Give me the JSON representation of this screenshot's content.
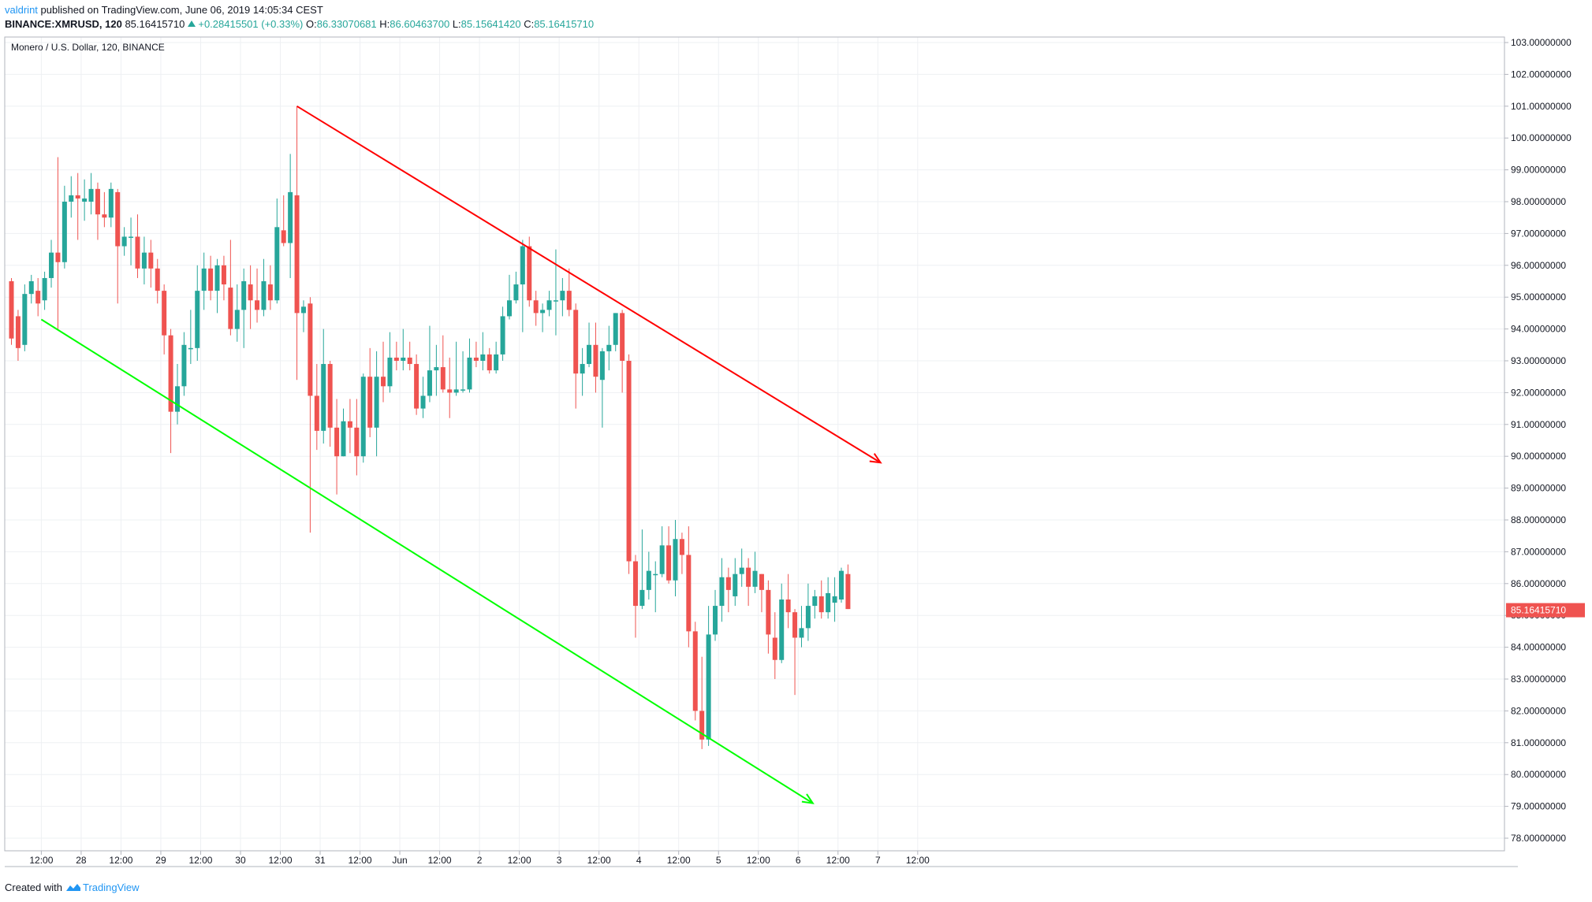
{
  "header": {
    "user": "valdrint",
    "published": " published on TradingView.com, June 06, 2019 14:05:34 CEST",
    "symbol": "BINANCE:XMRUSD, 120",
    "last": "85.16415710",
    "change": "+0.28415501 (+0.33%)",
    "o_label": "O:",
    "o_value": "86.33070681",
    "h_label": "H:",
    "h_value": "86.60463700",
    "l_label": "L:",
    "l_value": "85.15641420",
    "c_label": "C:",
    "c_value": "85.16415710"
  },
  "footer": {
    "created_with": "Created with",
    "brand": "TradingView"
  },
  "colors": {
    "up": "#26a69a",
    "down": "#ef5350",
    "upper_trend": "#ff0000",
    "lower_trend": "#00ff00",
    "grid": "#eef0f3"
  },
  "chart_data": {
    "type": "candlestick",
    "title": "Monero / U.S. Dollar, 120, BINANCE",
    "ylim": [
      77.6,
      103.3
    ],
    "y_ticks": [
      "103.00000000",
      "102.00000000",
      "101.00000000",
      "100.00000000",
      "99.00000000",
      "98.00000000",
      "97.00000000",
      "96.00000000",
      "95.00000000",
      "94.00000000",
      "93.00000000",
      "92.00000000",
      "91.00000000",
      "90.00000000",
      "89.00000000",
      "88.00000000",
      "87.00000000",
      "86.00000000",
      "85.00000000",
      "84.00000000",
      "83.00000000",
      "82.00000000",
      "81.00000000",
      "80.00000000",
      "79.00000000",
      "78.00000000"
    ],
    "x_ticks": [
      {
        "label": "12:00",
        "slot": 4.5
      },
      {
        "label": "28",
        "slot": 10.5
      },
      {
        "label": "12:00",
        "slot": 16.5
      },
      {
        "label": "29",
        "slot": 22.5
      },
      {
        "label": "12:00",
        "slot": 28.5
      },
      {
        "label": "30",
        "slot": 34.5
      },
      {
        "label": "12:00",
        "slot": 40.5
      },
      {
        "label": "31",
        "slot": 46.5
      },
      {
        "label": "12:00",
        "slot": 52.5
      },
      {
        "label": "Jun",
        "slot": 58.5
      },
      {
        "label": "12:00",
        "slot": 64.5
      },
      {
        "label": "2",
        "slot": 70.5
      },
      {
        "label": "12:00",
        "slot": 76.5
      },
      {
        "label": "3",
        "slot": 82.5
      },
      {
        "label": "12:00",
        "slot": 88.5
      },
      {
        "label": "4",
        "slot": 94.5
      },
      {
        "label": "12:00",
        "slot": 100.5
      },
      {
        "label": "5",
        "slot": 106.5
      },
      {
        "label": "12:00",
        "slot": 112.5
      },
      {
        "label": "6",
        "slot": 118.5
      },
      {
        "label": "12:00",
        "slot": 124.5
      },
      {
        "label": "7",
        "slot": 130.5
      },
      {
        "label": "12:00",
        "slot": 136.5
      }
    ],
    "last_price": 85.1641571,
    "last_price_label": "85.16415710",
    "candles": [
      [
        0.0,
        95.5,
        93.7,
        95.6,
        93.5
      ],
      [
        1.0,
        94.4,
        93.4,
        94.6,
        93.0
      ],
      [
        2.0,
        93.5,
        95.1,
        95.4,
        93.3
      ],
      [
        3.0,
        95.1,
        95.5,
        95.7,
        94.8
      ],
      [
        4.0,
        95.2,
        94.8,
        95.6,
        94.4
      ],
      [
        5.0,
        94.9,
        95.6,
        95.8,
        94.6
      ],
      [
        6.0,
        95.6,
        96.4,
        96.8,
        95.3
      ],
      [
        7.0,
        96.4,
        96.1,
        99.4,
        94.0
      ],
      [
        8.0,
        96.1,
        98.0,
        98.5,
        95.9
      ],
      [
        9.0,
        98.0,
        98.2,
        98.8,
        97.5
      ],
      [
        10.0,
        98.2,
        98.1,
        98.9,
        96.8
      ],
      [
        11.0,
        98.0,
        98.1,
        98.7,
        97.4
      ],
      [
        12.0,
        98.0,
        98.4,
        98.9,
        97.6
      ],
      [
        13.0,
        98.4,
        97.6,
        98.6,
        96.8
      ],
      [
        14.0,
        97.6,
        97.5,
        98.3,
        97.2
      ],
      [
        15.0,
        97.5,
        98.4,
        98.6,
        97.2
      ],
      [
        16.0,
        98.3,
        96.6,
        98.4,
        94.8
      ],
      [
        17.0,
        96.6,
        96.9,
        97.2,
        96.3
      ],
      [
        18.0,
        96.9,
        96.9,
        97.5,
        96.0
      ],
      [
        19.0,
        96.9,
        95.9,
        97.6,
        95.6
      ],
      [
        20.0,
        95.9,
        96.4,
        96.9,
        95.4
      ],
      [
        21.0,
        96.4,
        95.9,
        96.8,
        95.3
      ],
      [
        22.0,
        95.9,
        95.2,
        96.2,
        94.8
      ],
      [
        23.0,
        95.2,
        93.8,
        95.4,
        93.2
      ],
      [
        24.0,
        93.8,
        91.4,
        94.0,
        90.1
      ],
      [
        25.0,
        91.4,
        92.2,
        92.9,
        91.0
      ],
      [
        26.0,
        92.2,
        93.5,
        93.9,
        91.9
      ],
      [
        27.0,
        93.4,
        93.4,
        94.6,
        92.9
      ],
      [
        28.0,
        93.4,
        95.2,
        96.0,
        93.0
      ],
      [
        29.0,
        95.2,
        95.9,
        96.4,
        94.6
      ],
      [
        30.0,
        95.9,
        95.2,
        96.3,
        94.9
      ],
      [
        31.0,
        95.2,
        96.0,
        96.2,
        94.5
      ],
      [
        32.0,
        96.0,
        95.4,
        96.3,
        94.9
      ],
      [
        33.0,
        95.3,
        94.0,
        96.8,
        93.8
      ],
      [
        34.0,
        94.0,
        94.6,
        95.4,
        93.6
      ],
      [
        35.0,
        94.6,
        95.5,
        95.9,
        93.4
      ],
      [
        36.0,
        95.4,
        94.9,
        96.0,
        94.0
      ],
      [
        37.0,
        94.9,
        94.6,
        95.9,
        94.2
      ],
      [
        38.0,
        94.6,
        95.5,
        96.2,
        94.4
      ],
      [
        39.0,
        95.4,
        94.9,
        96.0,
        94.6
      ],
      [
        40.0,
        94.9,
        97.2,
        98.1,
        94.8
      ],
      [
        41.0,
        97.1,
        96.7,
        98.2,
        96.6
      ],
      [
        42.0,
        96.7,
        98.3,
        99.5,
        95.6
      ],
      [
        43.0,
        98.2,
        94.5,
        101.0,
        92.4
      ],
      [
        44.0,
        94.5,
        94.7,
        94.9,
        93.9
      ],
      [
        45.0,
        94.8,
        91.9,
        95.0,
        87.6
      ],
      [
        46.0,
        91.9,
        90.8,
        92.9,
        90.2
      ],
      [
        47.0,
        90.8,
        92.9,
        94.0,
        90.4
      ],
      [
        48.0,
        92.9,
        90.9,
        93.0,
        90.3
      ],
      [
        49.0,
        90.9,
        90.0,
        91.8,
        88.8
      ],
      [
        50.0,
        90.0,
        91.1,
        91.5,
        90.0
      ],
      [
        51.0,
        91.1,
        90.9,
        91.8,
        90.1
      ],
      [
        52.0,
        90.9,
        90.0,
        91.8,
        89.4
      ],
      [
        53.0,
        90.0,
        92.5,
        92.6,
        89.8
      ],
      [
        54.0,
        92.5,
        90.9,
        93.4,
        90.6
      ],
      [
        55.0,
        90.9,
        92.5,
        93.3,
        90.0
      ],
      [
        56.0,
        92.5,
        92.2,
        93.6,
        91.7
      ],
      [
        57.0,
        92.2,
        93.1,
        93.9,
        92.0
      ],
      [
        58.0,
        93.1,
        93.0,
        93.6,
        92.7
      ],
      [
        59.0,
        93.0,
        93.1,
        94.0,
        92.7
      ],
      [
        60.0,
        93.1,
        92.9,
        93.6,
        92.7
      ],
      [
        61.0,
        92.9,
        91.5,
        93.2,
        91.3
      ],
      [
        62.0,
        91.5,
        91.9,
        92.5,
        91.2
      ],
      [
        63.0,
        91.9,
        92.7,
        94.1,
        91.7
      ],
      [
        64.0,
        92.7,
        92.8,
        93.5,
        91.9
      ],
      [
        65.0,
        92.8,
        92.1,
        93.8,
        92.0
      ],
      [
        66.0,
        92.1,
        92.0,
        93.1,
        91.2
      ],
      [
        67.0,
        92.0,
        92.1,
        93.6,
        91.9
      ],
      [
        68.0,
        92.1,
        92.1,
        93.3,
        92.0
      ],
      [
        69.0,
        92.1,
        93.1,
        93.7,
        92.0
      ],
      [
        70.0,
        93.1,
        93.0,
        93.6,
        92.8
      ],
      [
        71.0,
        93.0,
        93.2,
        93.9,
        92.7
      ],
      [
        72.0,
        93.2,
        92.7,
        93.4,
        92.6
      ],
      [
        73.0,
        92.7,
        93.2,
        93.6,
        92.6
      ],
      [
        74.0,
        93.2,
        94.4,
        94.7,
        93.0
      ],
      [
        75.0,
        94.4,
        94.9,
        95.7,
        94.3
      ],
      [
        76.0,
        94.9,
        95.4,
        95.8,
        94.8
      ],
      [
        77.0,
        95.4,
        96.6,
        96.8,
        93.9
      ],
      [
        78.0,
        96.6,
        94.9,
        96.9,
        94.7
      ],
      [
        79.0,
        94.9,
        94.5,
        95.2,
        94.1
      ],
      [
        80.0,
        94.5,
        94.6,
        94.8,
        93.9
      ],
      [
        81.0,
        94.6,
        94.9,
        95.2,
        94.4
      ],
      [
        82.0,
        94.9,
        94.9,
        96.5,
        93.8
      ],
      [
        83.0,
        94.9,
        95.2,
        95.6,
        94.4
      ],
      [
        84.0,
        95.2,
        94.6,
        95.9,
        94.4
      ],
      [
        85.0,
        94.6,
        92.6,
        94.8,
        91.5
      ],
      [
        86.0,
        92.6,
        92.9,
        93.4,
        91.9
      ],
      [
        87.0,
        92.9,
        93.5,
        94.2,
        92.8
      ],
      [
        88.0,
        93.5,
        92.5,
        94.2,
        92.0
      ],
      [
        89.0,
        92.4,
        93.3,
        93.4,
        90.9
      ],
      [
        90.0,
        93.3,
        93.5,
        94.1,
        92.7
      ],
      [
        91.0,
        93.5,
        94.5,
        94.5,
        93.3
      ],
      [
        92.0,
        94.5,
        93.0,
        94.6,
        92.0
      ],
      [
        93.0,
        93.0,
        86.7,
        93.2,
        86.3
      ],
      [
        94.0,
        86.7,
        85.3,
        86.9,
        84.3
      ],
      [
        95.0,
        85.3,
        85.8,
        87.7,
        85.2
      ],
      [
        96.0,
        85.8,
        86.4,
        87.0,
        85.5
      ],
      [
        97.0,
        86.3,
        86.3,
        86.7,
        85.1
      ],
      [
        98.0,
        86.3,
        87.2,
        87.8,
        86.2
      ],
      [
        99.0,
        87.2,
        86.1,
        87.8,
        86.0
      ],
      [
        100.0,
        86.1,
        87.4,
        88.0,
        85.6
      ],
      [
        101.0,
        87.4,
        86.9,
        87.6,
        86.3
      ],
      [
        102.0,
        86.9,
        84.5,
        87.8,
        84.0
      ],
      [
        103.0,
        84.5,
        82.0,
        84.8,
        81.7
      ],
      [
        104.0,
        82.0,
        81.1,
        83.7,
        80.8
      ],
      [
        105.0,
        81.1,
        84.4,
        85.3,
        80.9
      ],
      [
        106.0,
        84.4,
        85.3,
        85.8,
        84.2
      ],
      [
        107.0,
        85.3,
        86.2,
        86.8,
        84.8
      ],
      [
        108.0,
        86.2,
        85.8,
        86.5,
        85.1
      ],
      [
        109.0,
        85.6,
        86.3,
        86.8,
        85.3
      ],
      [
        110.0,
        86.3,
        86.5,
        87.1,
        85.9
      ],
      [
        111.0,
        86.5,
        85.9,
        86.8,
        85.3
      ],
      [
        112.0,
        85.9,
        86.4,
        87.0,
        85.7
      ],
      [
        113.0,
        86.3,
        85.8,
        86.3,
        85.1
      ],
      [
        114.0,
        85.8,
        84.4,
        86.1,
        83.8
      ],
      [
        115.0,
        84.3,
        83.6,
        85.1,
        83.0
      ],
      [
        116.0,
        83.6,
        85.5,
        86.0,
        83.5
      ],
      [
        117.0,
        85.5,
        85.1,
        86.3,
        84.6
      ],
      [
        118.0,
        85.1,
        84.3,
        85.2,
        82.5
      ],
      [
        119.0,
        84.3,
        84.6,
        85.3,
        84.0
      ],
      [
        120.0,
        84.6,
        85.3,
        86.0,
        84.2
      ],
      [
        121.0,
        85.3,
        85.6,
        85.8,
        84.9
      ],
      [
        122.0,
        85.6,
        85.1,
        86.1,
        84.9
      ],
      [
        123.0,
        85.1,
        85.7,
        86.2,
        84.9
      ],
      [
        124.0,
        85.4,
        85.6,
        86.2,
        84.8
      ],
      [
        125.0,
        85.5,
        86.4,
        86.5,
        85.4
      ],
      [
        126.0,
        86.3,
        85.2,
        86.6,
        85.2
      ]
    ],
    "trendlines": [
      {
        "color": "#ff0000",
        "from": [
          43,
          101.0
        ],
        "to": [
          130.9,
          89.8
        ],
        "arrow": true
      },
      {
        "color": "#00ff00",
        "from": [
          4.5,
          94.3
        ],
        "to": [
          120.7,
          79.1
        ],
        "arrow": true
      }
    ]
  }
}
